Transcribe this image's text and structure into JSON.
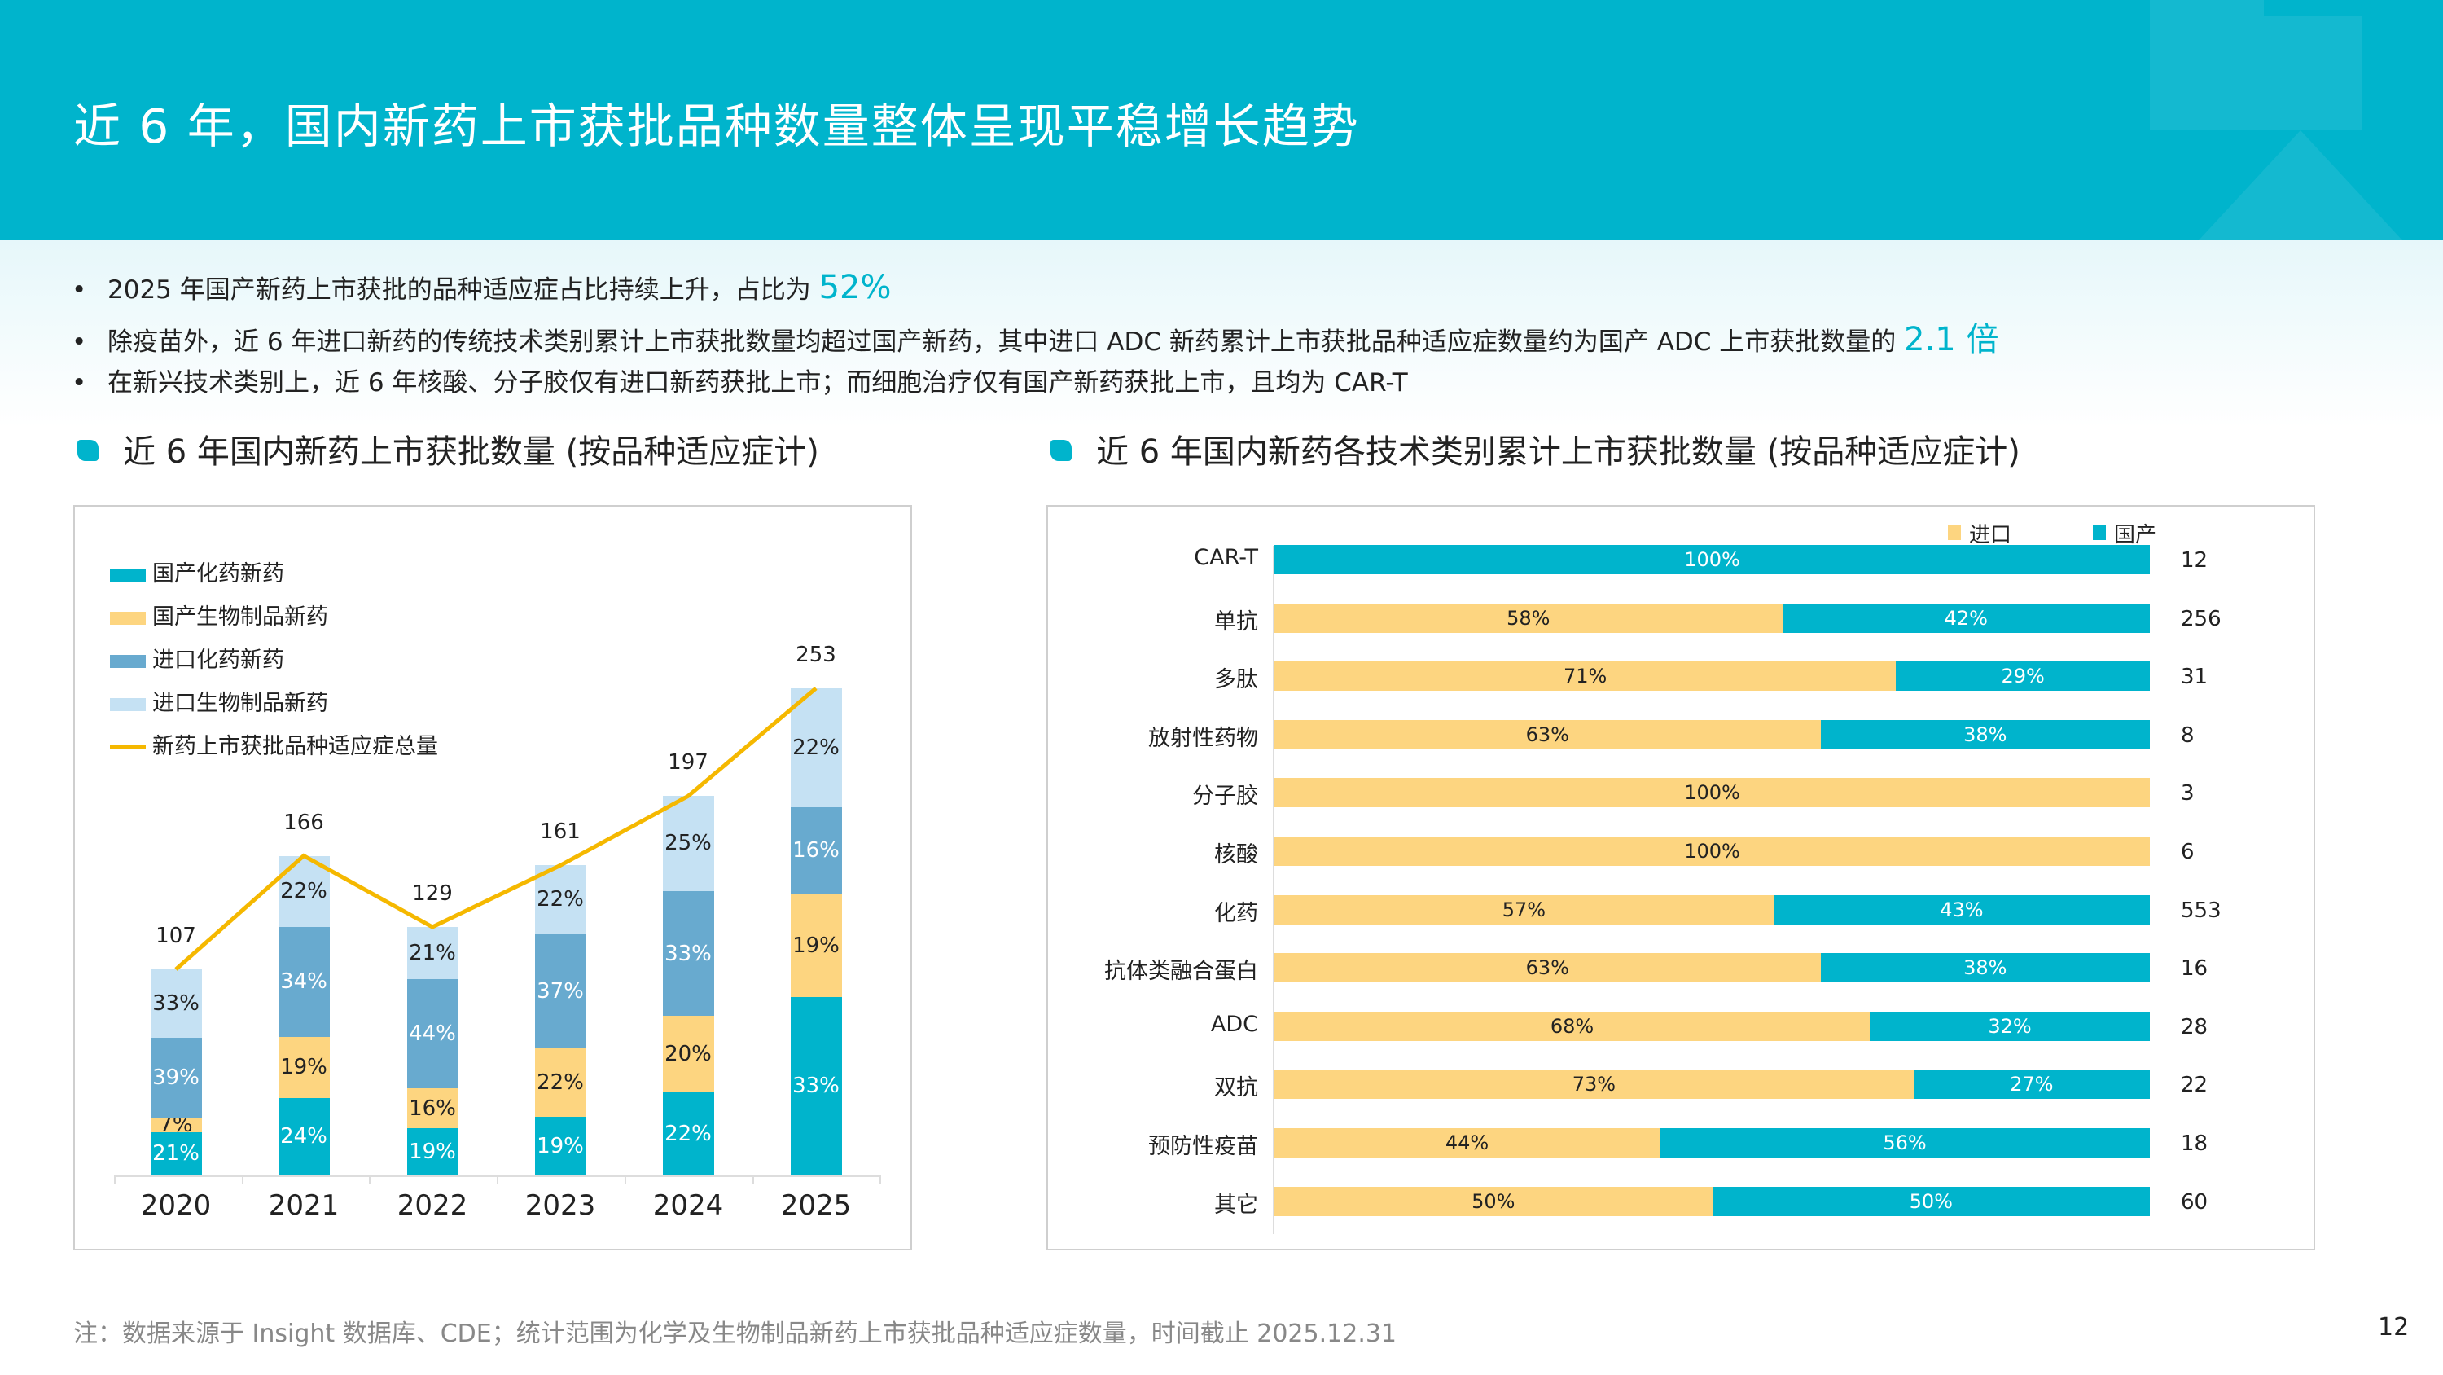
{
  "header": {
    "title": "近 6 年，国内新药上市获批品种数量整体呈现平稳增长趋势"
  },
  "bullets": [
    {
      "text": "2025 年国产新药上市获批的品种适应症占比持续上升，占比为 ",
      "highlight": "52%"
    },
    {
      "text": "除疫苗外，近 6 年进口新药的传统技术类别累计上市获批数量均超过国产新药，其中进口 ADC 新药累计上市获批品种适应症数量约为国产 ADC 上市获批数量的 ",
      "highlight": "2.1 倍"
    },
    {
      "text": "在新兴技术类别上，近 6 年核酸、分子胶仅有进口新药获批上市；而细胞治疗仅有国产新药获批上市，且均为 CAR-T",
      "highlight": ""
    }
  ],
  "sections": {
    "left_title": "近 6 年国内新药上市获批数量 (按品种适应症计)",
    "right_title": "近 6 年国内新药各技术类别累计上市获批数量 (按品种适应症计)"
  },
  "colors": {
    "accent": "#00b4cc",
    "domestic_chem": "#00b4cc",
    "domestic_bio": "#fdd580",
    "import_chem": "#68aacf",
    "import_bio": "#c5e1f3",
    "line": "#f5b800"
  },
  "chart_data": [
    {
      "type": "bar",
      "stacked": true,
      "categories": [
        "2020",
        "2021",
        "2022",
        "2023",
        "2024",
        "2025"
      ],
      "series": [
        {
          "name": "国产化药新药",
          "values": [
            21,
            24,
            19,
            19,
            22,
            33
          ]
        },
        {
          "name": "国产生物制品新药",
          "values": [
            7,
            19,
            16,
            22,
            20,
            19
          ]
        },
        {
          "name": "进口化药新药",
          "values": [
            39,
            34,
            44,
            37,
            33,
            16
          ]
        },
        {
          "name": "进口生物制品新药",
          "values": [
            33,
            22,
            21,
            22,
            25,
            22
          ]
        }
      ],
      "line": {
        "name": "新药上市获批品种适应症总量",
        "values": [
          107,
          166,
          129,
          161,
          197,
          253
        ]
      },
      "value_format": "percent of total",
      "legend": "top-left",
      "grid": false
    },
    {
      "type": "bar",
      "orientation": "horizontal",
      "stacked": true,
      "normalized": true,
      "categories": [
        "CAR-T",
        "单抗",
        "多肽",
        "放射性药物",
        "分子胶",
        "核酸",
        "化药",
        "抗体类融合蛋白",
        "ADC",
        "双抗",
        "预防性疫苗",
        "其它"
      ],
      "series": [
        {
          "name": "进口",
          "values": [
            0,
            58,
            71,
            63,
            100,
            100,
            57,
            63,
            68,
            73,
            44,
            50
          ]
        },
        {
          "name": "国产",
          "values": [
            100,
            42,
            29,
            38,
            0,
            0,
            43,
            38,
            32,
            27,
            56,
            50
          ]
        }
      ],
      "totals": [
        12,
        256,
        31,
        8,
        3,
        6,
        553,
        16,
        28,
        22,
        18,
        60
      ],
      "legend": "top-right",
      "grid": false
    }
  ],
  "footer": {
    "note": "注：数据来源于 Insight 数据库、CDE；统计范围为化学及生物制品新药上市获批品种适应症数量，时间截止 2025.12.31",
    "page": "12"
  }
}
